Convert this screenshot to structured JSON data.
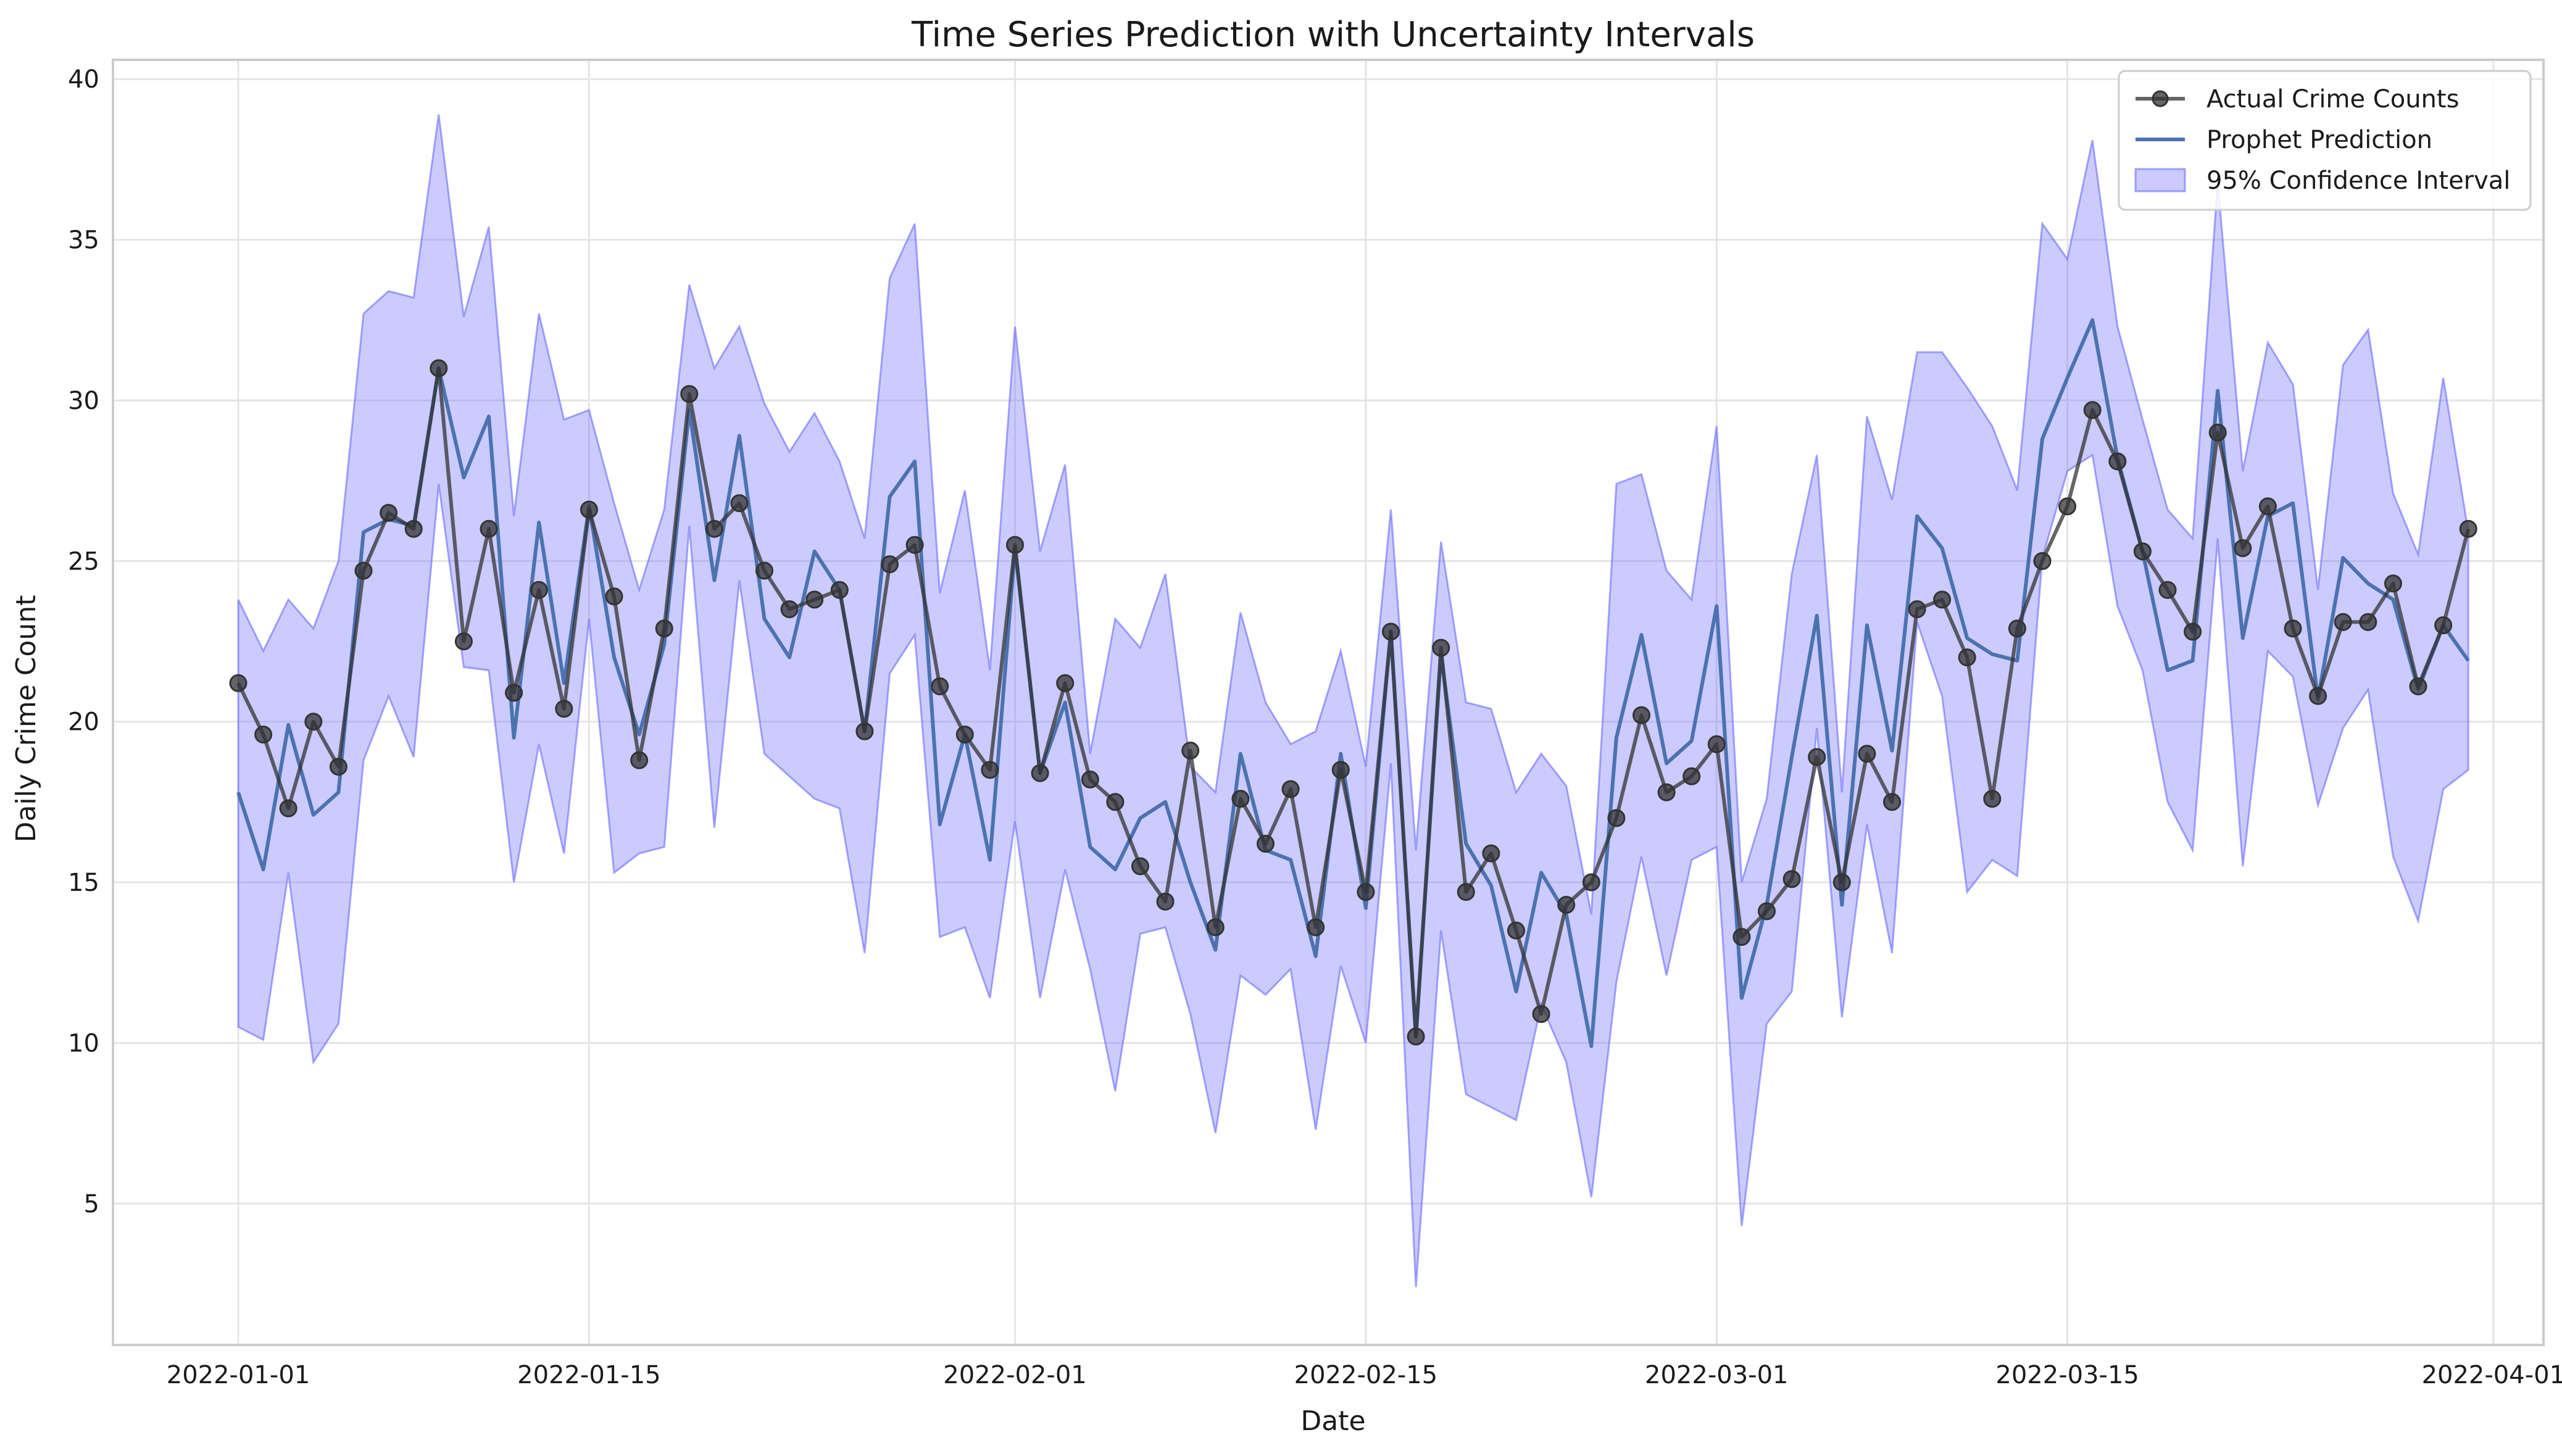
{
  "chart_data": {
    "type": "line",
    "title": "Time Series Prediction with Uncertainty Intervals",
    "xlabel": "Date",
    "ylabel": "Daily Crime Count",
    "x_start": "2022-01-01",
    "x_ticks": [
      "2022-01-01",
      "2022-01-15",
      "2022-02-01",
      "2022-02-15",
      "2022-03-01",
      "2022-03-15",
      "2022-04-01"
    ],
    "xlim": [
      "2021-12-27",
      "2022-04-03"
    ],
    "y_ticks": [
      5,
      10,
      15,
      20,
      25,
      30,
      35,
      40
    ],
    "ylim": [
      0.6,
      40.6
    ],
    "grid": true,
    "legend_position": "top-right",
    "colors": {
      "actual": "#333333",
      "prediction": "#4c72b0",
      "interval": "#6a6aff"
    },
    "series": [
      {
        "name": "Actual Crime Counts",
        "kind": "line-with-markers",
        "values": [
          21.2,
          19.6,
          17.3,
          20.0,
          18.6,
          24.7,
          26.5,
          26.0,
          31.0,
          22.5,
          26.0,
          20.9,
          24.1,
          20.4,
          26.6,
          23.9,
          18.8,
          22.9,
          30.2,
          26.0,
          26.8,
          24.7,
          23.5,
          23.8,
          24.1,
          19.7,
          24.9,
          25.5,
          21.1,
          19.6,
          18.5,
          25.5,
          18.4,
          21.2,
          18.2,
          17.5,
          15.5,
          14.4,
          19.1,
          13.6,
          17.6,
          16.2,
          17.9,
          13.6,
          18.5,
          14.7,
          22.8,
          10.2,
          22.3,
          14.7,
          15.9,
          13.5,
          10.9,
          14.3,
          15.0,
          17.0,
          20.2,
          17.8,
          18.3,
          19.3,
          13.3,
          14.1,
          15.1,
          18.9,
          15.0,
          19.0,
          17.5,
          23.5,
          23.8,
          22.0,
          17.6,
          22.9,
          25.0,
          26.7,
          29.7,
          28.1,
          25.3,
          24.1,
          22.8,
          29.0,
          25.4,
          26.7,
          22.9,
          20.8,
          23.1,
          23.1,
          24.3,
          21.1,
          23.0,
          26.0
        ]
      },
      {
        "name": "Prophet Prediction",
        "kind": "line",
        "values": [
          17.8,
          15.4,
          19.9,
          17.1,
          17.8,
          25.9,
          26.3,
          26.1,
          31.0,
          27.6,
          29.5,
          19.5,
          26.2,
          21.2,
          26.7,
          22.0,
          19.6,
          22.4,
          29.7,
          24.4,
          28.9,
          23.2,
          22.0,
          25.3,
          24.1,
          19.7,
          27.0,
          28.1,
          16.8,
          19.6,
          15.7,
          25.4,
          18.4,
          20.6,
          16.1,
          15.4,
          17.0,
          17.5,
          15.0,
          12.9,
          19.0,
          16.0,
          15.7,
          12.7,
          19.0,
          14.2,
          22.8,
          10.2,
          22.1,
          16.2,
          14.9,
          11.6,
          15.3,
          14.0,
          9.9,
          19.5,
          22.7,
          18.7,
          19.4,
          23.6,
          11.4,
          14.3,
          18.9,
          23.3,
          14.3,
          23.0,
          19.1,
          26.4,
          25.4,
          22.6,
          22.1,
          21.9,
          28.8,
          30.7,
          32.5,
          28.2,
          25.3,
          21.6,
          21.9,
          30.3,
          22.6,
          26.4,
          26.8,
          20.7,
          25.1,
          24.3,
          23.8,
          21.0,
          23.0,
          21.9
        ]
      },
      {
        "name": "95% Confidence Interval",
        "kind": "band",
        "lower": [
          10.5,
          10.1,
          15.3,
          9.4,
          10.6,
          18.8,
          20.8,
          18.9,
          27.4,
          21.7,
          21.6,
          15.0,
          19.3,
          15.9,
          23.2,
          15.3,
          15.9,
          16.1,
          26.1,
          16.7,
          24.4,
          19.0,
          18.3,
          17.6,
          17.3,
          12.8,
          21.5,
          22.7,
          13.3,
          13.6,
          11.4,
          16.9,
          11.4,
          15.4,
          12.3,
          8.5,
          13.4,
          13.6,
          10.9,
          7.2,
          12.1,
          11.5,
          12.3,
          7.3,
          12.4,
          10.0,
          18.7,
          2.4,
          13.5,
          8.4,
          8.0,
          7.6,
          11.2,
          9.4,
          5.2,
          11.9,
          15.8,
          12.1,
          15.7,
          16.1,
          4.3,
          10.6,
          11.6,
          19.8,
          10.8,
          16.8,
          12.8,
          23.1,
          20.8,
          14.7,
          15.7,
          15.2,
          25.1,
          27.8,
          28.3,
          23.6,
          21.6,
          17.5,
          16.0,
          25.7,
          15.5,
          22.2,
          21.4,
          17.4,
          19.8,
          21.0,
          15.8,
          13.8,
          17.9,
          18.5
        ],
        "upper": [
          23.8,
          22.2,
          23.8,
          22.9,
          25.0,
          32.7,
          33.4,
          33.2,
          38.9,
          32.6,
          35.4,
          26.4,
          32.7,
          29.4,
          29.7,
          26.8,
          24.1,
          26.6,
          33.6,
          31.0,
          32.3,
          29.9,
          28.4,
          29.6,
          28.1,
          25.7,
          33.8,
          35.5,
          24.0,
          27.2,
          21.6,
          32.3,
          25.3,
          28.0,
          19.0,
          23.2,
          22.3,
          24.6,
          18.6,
          17.8,
          23.4,
          20.6,
          19.3,
          19.7,
          22.2,
          18.6,
          26.6,
          16.0,
          25.6,
          20.6,
          20.4,
          17.8,
          19.0,
          18.0,
          14.0,
          27.4,
          27.7,
          24.7,
          23.8,
          29.2,
          15.0,
          17.6,
          24.6,
          28.3,
          17.8,
          29.5,
          26.9,
          31.5,
          31.5,
          30.4,
          29.2,
          27.2,
          35.5,
          34.4,
          38.1,
          32.3,
          29.4,
          26.6,
          25.7,
          36.8,
          27.8,
          31.8,
          30.5,
          24.1,
          31.1,
          32.2,
          27.1,
          25.2,
          30.7,
          25.9
        ]
      }
    ]
  }
}
